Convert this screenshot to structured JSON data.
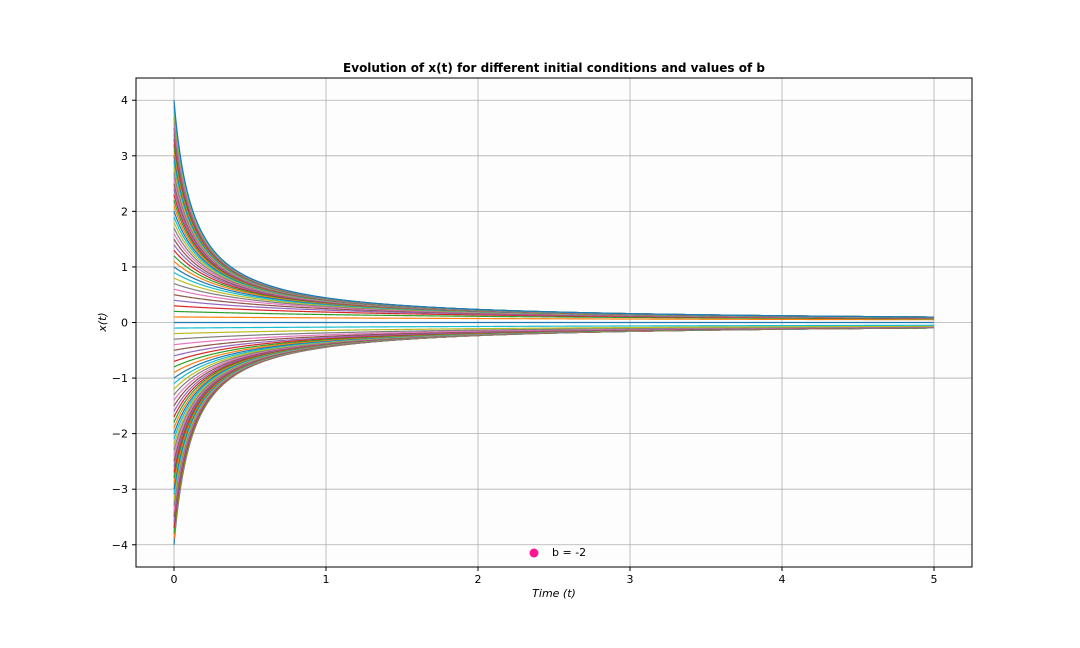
{
  "chart_data": {
    "type": "line",
    "title": "Evolution of x(t) for different initial conditions and values of b",
    "xlabel": "Time (t)",
    "ylabel": "x(t)",
    "xlim": [
      -0.25,
      5.25
    ],
    "ylim": [
      -4.4,
      4.4
    ],
    "xticks": [
      0,
      1,
      2,
      3,
      4,
      5
    ],
    "xtick_labels": [
      "0",
      "1",
      "2",
      "3",
      "4",
      "5"
    ],
    "yticks": [
      -4,
      -3,
      -2,
      -1,
      0,
      1,
      2,
      3,
      4
    ],
    "ytick_labels": [
      "−4",
      "−3",
      "−2",
      "−1",
      "0",
      "1",
      "2",
      "3",
      "4"
    ],
    "grid": true,
    "b": -2,
    "t_range": [
      0,
      5
    ],
    "initial_conditions": {
      "start": -4,
      "stop": 4,
      "count": 81
    },
    "series_colors": [
      "#1f77b4",
      "#ff7f0e",
      "#2ca02c",
      "#d62728",
      "#9467bd",
      "#8c564b",
      "#e377c2",
      "#7f7f7f",
      "#bcbd22",
      "#17becf"
    ],
    "legend": {
      "location": "lower center",
      "entries": [
        {
          "label": "b = -2",
          "marker": "circle",
          "color": "#ff1493"
        }
      ]
    }
  }
}
